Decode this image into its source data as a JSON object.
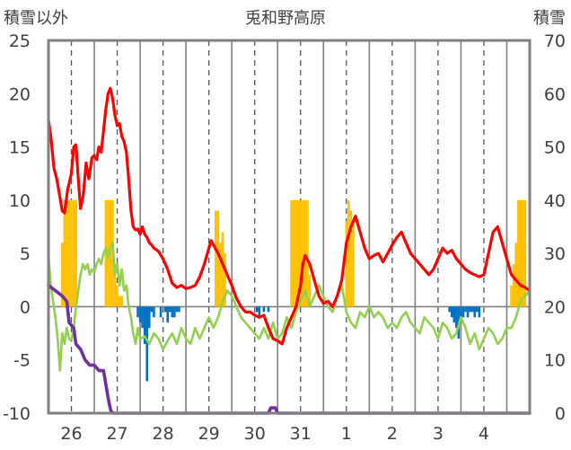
{
  "chart_data": {
    "type": "line",
    "title": "兎和野高原",
    "ylabel_left": "積雪以外",
    "ylabel_right": "積雪",
    "ylim_left": [
      -10,
      25
    ],
    "ylim_right": [
      0,
      70
    ],
    "yticks_left": [
      "25",
      "20",
      "15",
      "10",
      "5",
      "0",
      "-5",
      "-10"
    ],
    "yticks_right": [
      "70",
      "60",
      "50",
      "40",
      "30",
      "20",
      "10",
      "0"
    ],
    "x_range": [
      0,
      10.5
    ],
    "x_ticks": [
      {
        "label": "26",
        "pos": 0.5
      },
      {
        "label": "27",
        "pos": 1.5
      },
      {
        "label": "28",
        "pos": 2.5
      },
      {
        "label": "29",
        "pos": 3.5
      },
      {
        "label": "30",
        "pos": 4.5
      },
      {
        "label": "31",
        "pos": 5.5
      },
      {
        "label": "1",
        "pos": 6.5
      },
      {
        "label": "2",
        "pos": 7.5
      },
      {
        "label": "3",
        "pos": 8.5
      },
      {
        "label": "4",
        "pos": 9.5
      }
    ],
    "day_boundaries": [
      1,
      2,
      3,
      4,
      5,
      6,
      7,
      8,
      9,
      10
    ],
    "dashed_lines": [
      0.5,
      1.5,
      2.5,
      3.5,
      4.5,
      5.5,
      6.5,
      7.5,
      8.5,
      9.5
    ],
    "colors": {
      "temperature": "#ff0000",
      "dewpoint": "#92d050",
      "snow_depth": "#7030a0",
      "snowfall_bar": "#ffc000",
      "precip_bar": "#0070c0",
      "axis": "#808080"
    },
    "series": [
      {
        "key": "temperature",
        "axis": "left",
        "x": [
          0.0,
          0.05,
          0.12,
          0.18,
          0.24,
          0.3,
          0.35,
          0.42,
          0.5,
          0.55,
          0.6,
          0.65,
          0.7,
          0.76,
          0.82,
          0.88,
          0.95,
          1.0,
          1.05,
          1.1,
          1.15,
          1.2,
          1.25,
          1.3,
          1.35,
          1.4,
          1.45,
          1.5,
          1.55,
          1.6,
          1.65,
          1.7,
          1.75,
          1.8,
          1.85,
          1.9,
          1.95,
          2.0,
          2.05,
          2.1,
          2.15,
          2.2,
          2.25,
          2.3,
          2.4,
          2.5,
          2.6,
          2.7,
          2.8,
          2.9,
          3.0,
          3.1,
          3.2,
          3.3,
          3.4,
          3.5,
          3.55,
          3.6,
          3.7,
          3.8,
          3.9,
          4.0,
          4.1,
          4.2,
          4.3,
          4.4,
          4.5,
          4.6,
          4.7,
          4.8,
          4.9,
          5.0,
          5.1,
          5.2,
          5.3,
          5.4,
          5.5,
          5.55,
          5.6,
          5.7,
          5.8,
          5.9,
          6.0,
          6.1,
          6.2,
          6.3,
          6.4,
          6.5,
          6.6,
          6.7,
          6.8,
          6.9,
          7.0,
          7.1,
          7.2,
          7.3,
          7.4,
          7.5,
          7.6,
          7.7,
          7.8,
          7.9,
          8.0,
          8.1,
          8.2,
          8.3,
          8.4,
          8.5,
          8.6,
          8.7,
          8.8,
          8.9,
          9.0,
          9.1,
          9.2,
          9.3,
          9.4,
          9.5,
          9.6,
          9.7,
          9.8,
          9.9,
          10.0,
          10.1,
          10.2,
          10.3,
          10.4,
          10.5
        ],
        "y": [
          17.5,
          16.0,
          13.0,
          12.0,
          10.5,
          9.0,
          8.8,
          11.0,
          12.5,
          15.0,
          15.2,
          12.0,
          9.2,
          10.5,
          13.5,
          12.0,
          14.0,
          14.2,
          13.8,
          15.0,
          14.5,
          16.5,
          18.5,
          20.0,
          20.5,
          19.5,
          18.0,
          17.0,
          17.2,
          16.0,
          15.5,
          14.5,
          12.0,
          9.0,
          7.5,
          7.2,
          7.3,
          6.8,
          7.5,
          6.8,
          6.5,
          6.0,
          5.8,
          5.5,
          5.2,
          4.5,
          3.5,
          2.2,
          1.8,
          2.0,
          1.7,
          1.8,
          2.0,
          2.8,
          4.0,
          5.5,
          6.2,
          5.8,
          5.0,
          4.0,
          3.0,
          2.0,
          0.8,
          0.0,
          -0.5,
          -0.5,
          -0.8,
          -1.0,
          -0.8,
          -2.0,
          -3.0,
          -3.2,
          -3.5,
          -2.0,
          -1.0,
          0.0,
          2.0,
          4.0,
          4.8,
          4.0,
          2.5,
          1.0,
          0.3,
          0.5,
          0.0,
          1.0,
          2.5,
          6.0,
          7.5,
          8.5,
          7.0,
          5.5,
          4.5,
          4.8,
          5.0,
          4.2,
          5.0,
          5.8,
          6.5,
          7.0,
          6.0,
          5.0,
          4.5,
          4.0,
          3.5,
          3.0,
          3.5,
          4.5,
          5.5,
          5.0,
          5.3,
          4.5,
          4.0,
          3.5,
          3.2,
          3.0,
          2.8,
          3.0,
          5.0,
          7.0,
          7.5,
          6.0,
          4.5,
          3.0,
          2.5,
          2.0,
          1.8,
          1.5
        ],
        "linewidth": 3.2
      },
      {
        "key": "dewpoint",
        "axis": "left",
        "x": [
          0.0,
          0.05,
          0.1,
          0.15,
          0.2,
          0.25,
          0.3,
          0.35,
          0.4,
          0.45,
          0.5,
          0.55,
          0.6,
          0.65,
          0.7,
          0.75,
          0.8,
          0.85,
          0.9,
          0.95,
          1.0,
          1.05,
          1.1,
          1.15,
          1.2,
          1.25,
          1.3,
          1.35,
          1.4,
          1.45,
          1.5,
          1.55,
          1.6,
          1.65,
          1.7,
          1.75,
          1.8,
          1.85,
          1.9,
          1.95,
          2.0,
          2.1,
          2.2,
          2.3,
          2.4,
          2.5,
          2.6,
          2.7,
          2.8,
          2.9,
          3.0,
          3.1,
          3.2,
          3.3,
          3.4,
          3.5,
          3.6,
          3.7,
          3.8,
          3.9,
          4.0,
          4.1,
          4.2,
          4.3,
          4.4,
          4.5,
          4.6,
          4.7,
          4.8,
          4.9,
          5.0,
          5.1,
          5.2,
          5.3,
          5.4,
          5.5,
          5.6,
          5.7,
          5.8,
          5.9,
          6.0,
          6.1,
          6.2,
          6.3,
          6.4,
          6.5,
          6.6,
          6.7,
          6.8,
          6.9,
          7.0,
          7.1,
          7.2,
          7.3,
          7.4,
          7.5,
          7.6,
          7.7,
          7.8,
          7.9,
          8.0,
          8.1,
          8.2,
          8.3,
          8.4,
          8.5,
          8.6,
          8.7,
          8.8,
          8.9,
          9.0,
          9.1,
          9.2,
          9.3,
          9.4,
          9.5,
          9.6,
          9.7,
          9.8,
          9.9,
          10.0,
          10.1,
          10.2,
          10.3,
          10.4,
          10.5
        ],
        "y": [
          4.8,
          2.0,
          0.5,
          -1.0,
          -3.0,
          -6.0,
          -2.5,
          -3.5,
          -2.0,
          -3.0,
          -3.2,
          -2.0,
          0.0,
          1.5,
          3.0,
          4.0,
          3.5,
          4.0,
          3.0,
          3.5,
          3.2,
          4.0,
          4.5,
          4.0,
          5.0,
          5.5,
          4.5,
          5.5,
          6.0,
          3.0,
          4.0,
          2.0,
          3.5,
          1.5,
          2.0,
          0.0,
          -1.0,
          -2.5,
          -3.5,
          -2.0,
          -3.0,
          -2.8,
          -3.5,
          -2.5,
          -3.0,
          -4.0,
          -3.2,
          -2.5,
          -3.5,
          -2.0,
          -3.0,
          -3.5,
          -2.0,
          -3.0,
          -2.0,
          -1.0,
          -2.0,
          -1.0,
          0.5,
          1.5,
          1.0,
          0.0,
          -1.0,
          -1.5,
          -2.0,
          -2.5,
          -3.0,
          -2.0,
          -3.0,
          -1.5,
          -3.0,
          -2.5,
          -1.0,
          -2.0,
          -0.5,
          0.5,
          1.5,
          0.0,
          1.0,
          2.0,
          1.0,
          0.0,
          -0.5,
          1.0,
          2.0,
          -0.5,
          -1.5,
          -2.0,
          -0.5,
          -1.0,
          0.0,
          -1.0,
          -0.5,
          -1.0,
          -2.0,
          -1.5,
          -2.0,
          -1.0,
          -0.5,
          -1.5,
          -2.0,
          -2.5,
          -1.0,
          -1.5,
          -2.0,
          -3.0,
          -1.5,
          -2.0,
          -3.0,
          -2.5,
          -1.0,
          -2.0,
          -3.5,
          -2.5,
          -4.0,
          -3.0,
          -2.0,
          -2.5,
          -3.5,
          -3.0,
          -2.0,
          -2.0,
          -1.0,
          0.5,
          1.0,
          1.5
        ],
        "linewidth": 2.6
      },
      {
        "key": "snow_depth",
        "axis": "right",
        "x": [
          0.0,
          0.15,
          0.3,
          0.4,
          0.45,
          0.55,
          0.6,
          0.7,
          0.75,
          0.8,
          0.9,
          1.0,
          1.1,
          1.2,
          1.28,
          1.32,
          1.36,
          1.4,
          1.5,
          4.8,
          4.85,
          4.9,
          4.95,
          5.0,
          10.5
        ],
        "y": [
          24,
          23,
          22,
          21,
          17,
          16,
          13,
          12,
          11,
          10,
          9,
          9,
          8,
          8,
          4,
          2,
          0.5,
          0,
          0,
          0,
          1,
          1,
          1,
          0,
          0
        ],
        "linewidth": 3.6
      }
    ],
    "bars": [
      {
        "key": "snowfall_bar",
        "axis": "left",
        "x": [
          0.3,
          0.35,
          0.4,
          0.45,
          0.5,
          0.55,
          0.6,
          1.25,
          1.3,
          1.35,
          1.4,
          1.45,
          1.5,
          1.55,
          1.6,
          3.65,
          3.7,
          3.75,
          3.8,
          3.85,
          5.3,
          5.35,
          5.4,
          5.45,
          5.5,
          5.55,
          5.6,
          5.65,
          5.7,
          6.5,
          6.55,
          6.6,
          6.65,
          10.1,
          10.15,
          10.2,
          10.25,
          10.3,
          10.35,
          10.4
        ],
        "y": [
          6.0,
          10.0,
          10.0,
          10.0,
          10.0,
          10.0,
          10.0,
          10.0,
          10.0,
          10.0,
          10.0,
          4.0,
          2.0,
          1.0,
          1.0,
          9.0,
          9.0,
          6.0,
          7.0,
          5.0,
          10.0,
          10.0,
          10.0,
          10.0,
          10.0,
          10.0,
          10.0,
          10.0,
          3.0,
          8.0,
          10.0,
          9.0,
          8.0,
          2.0,
          4.0,
          6.0,
          10.0,
          10.0,
          10.0,
          10.0
        ]
      },
      {
        "key": "precip_bar",
        "axis": "left",
        "x": [
          1.95,
          2.0,
          2.05,
          2.1,
          2.15,
          2.2,
          2.25,
          2.3,
          2.45,
          2.55,
          2.6,
          2.65,
          2.7,
          2.75,
          2.8,
          2.85,
          4.55,
          4.6,
          4.7,
          4.8,
          8.75,
          8.8,
          8.85,
          8.9,
          8.95,
          9.0,
          9.05,
          9.1,
          9.15,
          9.2,
          9.25,
          9.3,
          9.35,
          9.4
        ],
        "y": [
          -1.0,
          -1.5,
          -2.0,
          -3.5,
          -7.0,
          -2.0,
          -0.5,
          -1.0,
          -1.0,
          -0.5,
          -1.5,
          -0.5,
          -1.0,
          -1.0,
          -0.5,
          -0.5,
          -0.5,
          -1.0,
          -0.5,
          -0.5,
          -0.5,
          -1.0,
          -1.5,
          -2.0,
          -3.0,
          -1.5,
          -1.0,
          -0.5,
          -1.0,
          -0.5,
          -0.5,
          -1.0,
          -0.5,
          -1.0
        ]
      }
    ],
    "grid": true,
    "legend": "none"
  }
}
